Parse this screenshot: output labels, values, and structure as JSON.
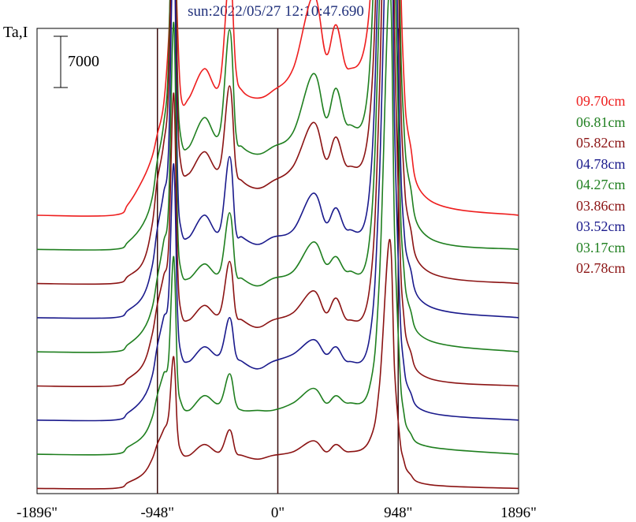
{
  "title": "sun:2022/05/27 12:10:47.690",
  "chart_data": {
    "type": "line",
    "ylabel": "Ta,I",
    "scale_bar_label": "7000",
    "scale_bar_value": 7000,
    "x_ticks": [
      {
        "value": -1896,
        "label": "-1896\""
      },
      {
        "value": -948,
        "label": "-948\""
      },
      {
        "value": 0,
        "label": "0\""
      },
      {
        "value": 948,
        "label": "948\""
      },
      {
        "value": 1896,
        "label": "1896\""
      }
    ],
    "xlim": [
      -1896,
      1896
    ],
    "vertical_lines": [
      -948,
      0,
      948
    ],
    "x": [
      -1896,
      -1300,
      -1180,
      -1060,
      -990,
      -950,
      -900,
      -860,
      -820,
      -790,
      -760,
      -700,
      -580,
      -460,
      -380,
      -330,
      -280,
      -160,
      -40,
      120,
      280,
      380,
      460,
      560,
      720,
      800,
      880,
      920,
      960,
      990,
      1040,
      1200,
      1896
    ],
    "series": [
      {
        "name": "09.70cm",
        "color": "#ee1e1e",
        "baseline": 0,
        "values": [
          0,
          0,
          1500,
          5000,
          8000,
          11000,
          15000,
          24000,
          41000,
          26000,
          16000,
          16000,
          20000,
          18000,
          33000,
          20000,
          17000,
          16000,
          17000,
          20000,
          30000,
          22000,
          26000,
          20000,
          28000,
          70000,
          112000,
          85000,
          40000,
          20000,
          10000,
          2000,
          0
        ]
      },
      {
        "name": "06.81cm",
        "color": "#1f7f1f",
        "baseline": 0,
        "values": [
          0,
          0,
          1000,
          3500,
          7000,
          12000,
          17000,
          26000,
          58000,
          24000,
          15000,
          14000,
          18000,
          16000,
          30000,
          16000,
          14000,
          13000,
          14000,
          16000,
          24000,
          18000,
          22000,
          17000,
          24000,
          75000,
          142000,
          82000,
          35000,
          18000,
          9000,
          1500,
          0
        ]
      },
      {
        "name": "05.82cm",
        "color": "#8b1313",
        "baseline": 0,
        "values": [
          0,
          0,
          1000,
          3000,
          8000,
          14000,
          19000,
          27000,
          56000,
          25000,
          16000,
          15000,
          18000,
          16000,
          27000,
          16000,
          14000,
          13000,
          14000,
          16000,
          22000,
          17000,
          20000,
          16000,
          22000,
          62000,
          148000,
          75000,
          32000,
          16000,
          8000,
          1500,
          0
        ]
      },
      {
        "name": "04.78cm",
        "color": "#1a1a8c",
        "baseline": 0,
        "values": [
          0,
          0,
          1000,
          3000,
          7000,
          12000,
          17000,
          23000,
          52000,
          20000,
          12000,
          11000,
          14000,
          12000,
          22000,
          12000,
          11000,
          10000,
          11000,
          12000,
          17000,
          13000,
          15000,
          12000,
          17000,
          55000,
          123000,
          62000,
          26000,
          13000,
          7000,
          1500,
          0
        ]
      },
      {
        "name": "04.27cm",
        "color": "#1f7f1f",
        "baseline": 0,
        "values": [
          0,
          0,
          1000,
          3000,
          6000,
          10000,
          15000,
          20000,
          45000,
          18000,
          11000,
          10000,
          12000,
          11000,
          19000,
          11000,
          10000,
          9000,
          10000,
          11000,
          15000,
          12000,
          13000,
          11000,
          15000,
          48000,
          110000,
          55000,
          23000,
          12000,
          6000,
          1500,
          0
        ]
      },
      {
        "name": "03.86cm",
        "color": "#8b1313",
        "baseline": 0,
        "values": [
          0,
          0,
          1000,
          3000,
          7000,
          11000,
          15000,
          19000,
          40000,
          17000,
          10000,
          9000,
          11000,
          10000,
          17000,
          10000,
          9000,
          8000,
          9000,
          10000,
          13000,
          10000,
          12000,
          9000,
          13000,
          40000,
          98000,
          48000,
          20000,
          10000,
          5000,
          1000,
          0
        ]
      },
      {
        "name": "03.52cm",
        "color": "#1a1a8c",
        "baseline": 0,
        "values": [
          0,
          0,
          1000,
          3000,
          6000,
          10000,
          14000,
          17000,
          35000,
          15000,
          9000,
          8000,
          10000,
          9000,
          14000,
          9000,
          8000,
          7000,
          8000,
          9000,
          11000,
          9000,
          10000,
          8000,
          11000,
          33000,
          82000,
          40000,
          16000,
          8000,
          4000,
          1000,
          0
        ]
      },
      {
        "name": "03.17cm",
        "color": "#1f7f1f",
        "baseline": 0,
        "values": [
          0,
          0,
          1000,
          2500,
          5000,
          8000,
          11000,
          13000,
          27000,
          11000,
          7000,
          6000,
          8000,
          7000,
          11000,
          7000,
          6000,
          6000,
          6000,
          7000,
          9000,
          7000,
          8000,
          7000,
          9000,
          24000,
          64000,
          30000,
          12000,
          6000,
          3000,
          1000,
          0
        ]
      },
      {
        "name": "02.78cm",
        "color": "#8b1313",
        "baseline": 0,
        "values": [
          0,
          0,
          800,
          2000,
          4000,
          6000,
          8000,
          10000,
          18000,
          8000,
          5000,
          4500,
          6000,
          5000,
          8000,
          5000,
          4500,
          4000,
          4500,
          5000,
          6500,
          5000,
          6000,
          5000,
          6500,
          14000,
          34000,
          16000,
          7000,
          4000,
          2000,
          500,
          0
        ]
      }
    ]
  }
}
